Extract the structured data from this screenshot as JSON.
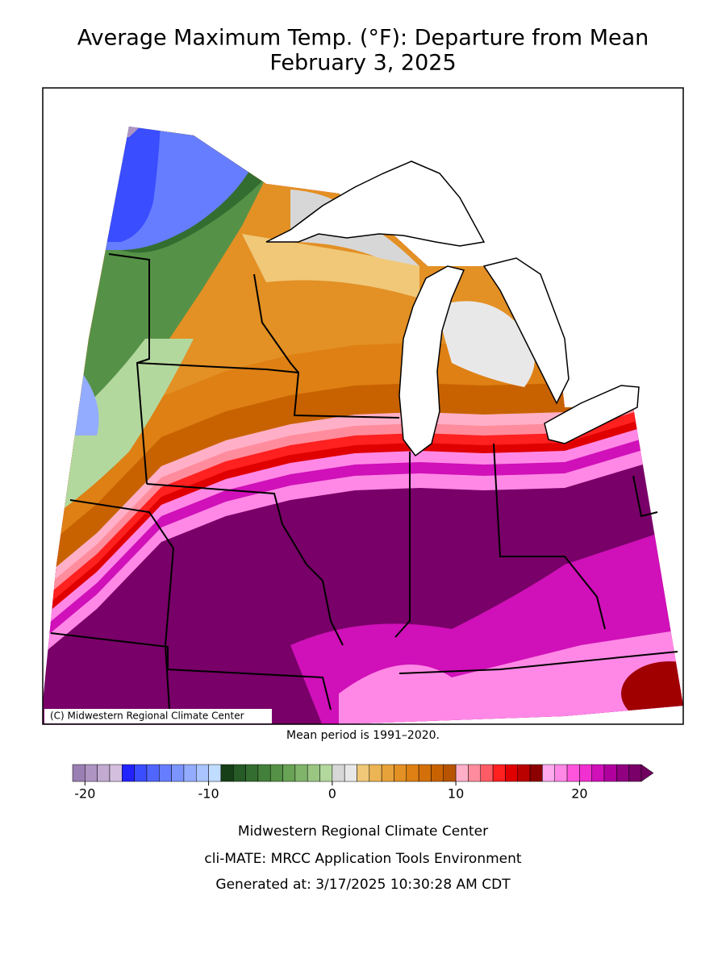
{
  "title": "Average Maximum Temp. (°F): Departure from Mean",
  "subtitle": "February 3, 2025",
  "credit": "(C) Midwestern Regional Climate Center",
  "mean_period": "Mean period is 1991–2020.",
  "colorbar": {
    "range": [
      -21,
      25
    ],
    "ticks": [
      -20,
      -10,
      0,
      10,
      20
    ],
    "colors": [
      "#9a7fb3",
      "#ae94c2",
      "#c2aad1",
      "#d5bfde",
      "#2323ff",
      "#3a4dff",
      "#5066ff",
      "#667dff",
      "#7c94ff",
      "#93acff",
      "#a9c4ff",
      "#c0dcff",
      "#173f17",
      "#265a26",
      "#346d30",
      "#43803b",
      "#559247",
      "#69a356",
      "#80b46a",
      "#9ac682",
      "#b3d89e",
      "#d7d7d7",
      "#e8e8e8",
      "#f0c878",
      "#ebb454",
      "#e7a23a",
      "#e39024",
      "#de8014",
      "#d4700a",
      "#c86200",
      "#b85400",
      "#ffb0c8",
      "#ff8c9c",
      "#ff5c66",
      "#ff2020",
      "#e00000",
      "#bb0000",
      "#8c0000",
      "#ffaaee",
      "#ff88e6",
      "#ff55dd",
      "#f030d0",
      "#d010b8",
      "#b0009e",
      "#900080",
      "#780068"
    ],
    "arrow_color": "#700060"
  },
  "footer": [
    "Midwestern Regional Climate Center",
    "cli-MATE: MRCC Application Tools Environment",
    "Generated at: 3/17/2025 10:30:28 AM CDT"
  ]
}
